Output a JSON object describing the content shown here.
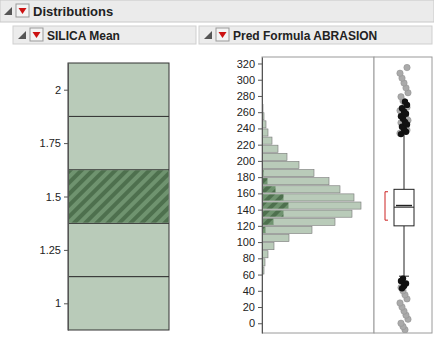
{
  "header": {
    "title": "Distributions"
  },
  "chart_data": [
    {
      "type": "histogram",
      "title": "SILICA Mean",
      "orientation": "horizontal",
      "bins": [
        0.875,
        1.125,
        1.375,
        1.625,
        1.875,
        2.125
      ],
      "counts": [
        100,
        100,
        100,
        100,
        100
      ],
      "selected_counts": [
        0,
        0,
        100,
        0,
        0
      ],
      "color": "#b9cbb9",
      "xlim": [
        0,
        100
      ],
      "ylim": [
        0.875,
        2.125
      ],
      "yticks": [
        1,
        1.25,
        1.5,
        1.75,
        2
      ],
      "tick_labels": "y"
    },
    {
      "type": "histogram",
      "title": "Pred Formula ABRASION",
      "orientation": "horizontal",
      "bins": [
        60,
        70,
        80,
        90,
        100,
        110,
        120,
        130,
        140,
        150,
        160,
        170,
        180,
        190,
        200,
        210,
        220,
        230,
        240,
        250,
        260,
        270
      ],
      "counts": [
        2,
        3,
        6,
        12,
        27,
        50,
        73,
        90,
        99,
        92,
        78,
        67,
        52,
        37,
        25,
        16,
        10,
        6,
        4,
        2,
        1
      ],
      "selected_counts": [
        0,
        0,
        0,
        0,
        1,
        4,
        12,
        22,
        27,
        22,
        14,
        6,
        2,
        0,
        0,
        0,
        0,
        0,
        0,
        0,
        0
      ],
      "color": "#b9cbb9",
      "xlim": [
        0,
        110
      ],
      "ylim": [
        -12,
        328
      ],
      "yticks": [
        0,
        20,
        40,
        60,
        80,
        100,
        120,
        140,
        160,
        180,
        200,
        220,
        240,
        260,
        280,
        300,
        320
      ],
      "tick_labels": "y",
      "box": {
        "whisker_low": 58,
        "q1": 120,
        "median": 143,
        "mean": 145,
        "q3": 165,
        "whisker_high": 236,
        "shortest_half": [
          127,
          162
        ]
      },
      "outliers": [
        234,
        238,
        241,
        244,
        247,
        250,
        253,
        256,
        259,
        262,
        266,
        270,
        274,
        279,
        284,
        290,
        296,
        302,
        308,
        315,
        -8,
        -4,
        0,
        5,
        10,
        15,
        20,
        25,
        30,
        35,
        40,
        44
      ],
      "selected_outliers": [
        233,
        236,
        239,
        242,
        245,
        248,
        252,
        255,
        258,
        261,
        265,
        269,
        273,
        55,
        52,
        49,
        46,
        43
      ]
    }
  ]
}
